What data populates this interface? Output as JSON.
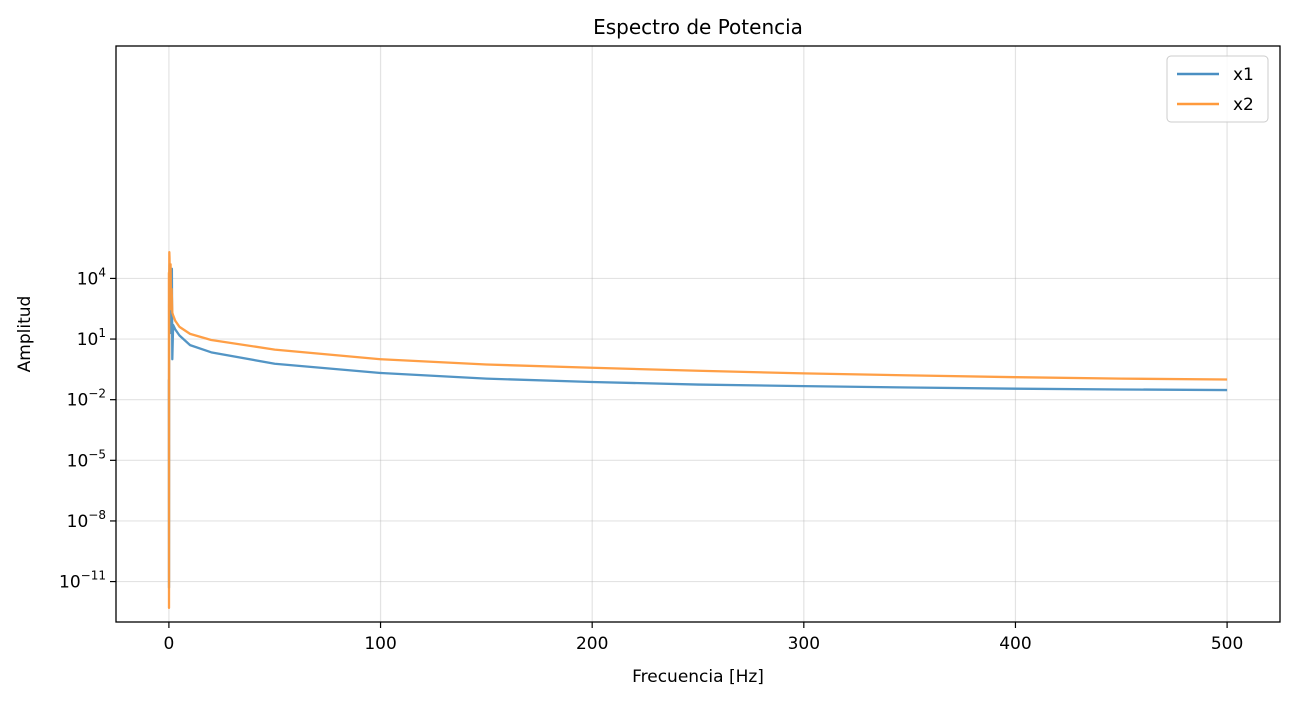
{
  "chart_data": {
    "type": "line",
    "title": "Espectro de Potencia",
    "xlabel": "Frecuencia [Hz]",
    "ylabel": "Amplitud",
    "xlim": [
      -25,
      525
    ],
    "ylim_log10": [
      -13,
      15.5
    ],
    "yscale": "log",
    "grid": true,
    "legend_position": "top-right",
    "x_ticks": [
      {
        "value": 0,
        "label": "0"
      },
      {
        "value": 100,
        "label": "100"
      },
      {
        "value": 200,
        "label": "200"
      },
      {
        "value": 300,
        "label": "300"
      },
      {
        "value": 400,
        "label": "400"
      },
      {
        "value": 500,
        "label": "500"
      }
    ],
    "y_ticks": [
      {
        "exp": 4,
        "base": "10",
        "sup": "4"
      },
      {
        "exp": 1,
        "base": "10",
        "sup": "1"
      },
      {
        "exp": -2,
        "base": "10",
        "sup": "−2"
      },
      {
        "exp": -5,
        "base": "10",
        "sup": "−5"
      },
      {
        "exp": -8,
        "base": "10",
        "sup": "−8"
      },
      {
        "exp": -11,
        "base": "10",
        "sup": "−11"
      }
    ],
    "series": [
      {
        "name": "x1",
        "color": "#4a8fc2",
        "x": [
          0,
          0.05,
          0.1,
          0.2,
          0.35,
          0.5,
          0.65,
          0.8,
          1.0,
          1.2,
          1.4,
          1.6,
          2,
          3,
          5,
          10,
          20,
          50,
          100,
          150,
          200,
          250,
          300,
          350,
          400,
          450,
          500
        ],
        "y": [
          0.1,
          5e-12,
          500,
          10000,
          50000,
          3000,
          8000,
          20,
          10000,
          500,
          30000,
          1,
          50,
          30,
          15,
          5,
          2.2,
          0.6,
          0.21,
          0.11,
          0.075,
          0.056,
          0.047,
          0.04,
          0.035,
          0.032,
          0.03
        ]
      },
      {
        "name": "x2",
        "color": "#ff9a3c",
        "x": [
          0,
          0.05,
          0.1,
          0.2,
          0.3,
          0.45,
          0.6,
          0.8,
          1.0,
          1.3,
          1.6,
          2,
          3,
          5,
          10,
          20,
          50,
          100,
          150,
          200,
          250,
          300,
          350,
          400,
          450,
          500
        ],
        "y": [
          20000,
          5e-13,
          300,
          200000,
          100000,
          3000,
          800,
          50000,
          300,
          3000,
          200,
          150,
          80,
          40,
          18,
          9,
          3,
          1.0,
          0.55,
          0.38,
          0.27,
          0.2,
          0.16,
          0.13,
          0.11,
          0.1
        ]
      }
    ]
  }
}
